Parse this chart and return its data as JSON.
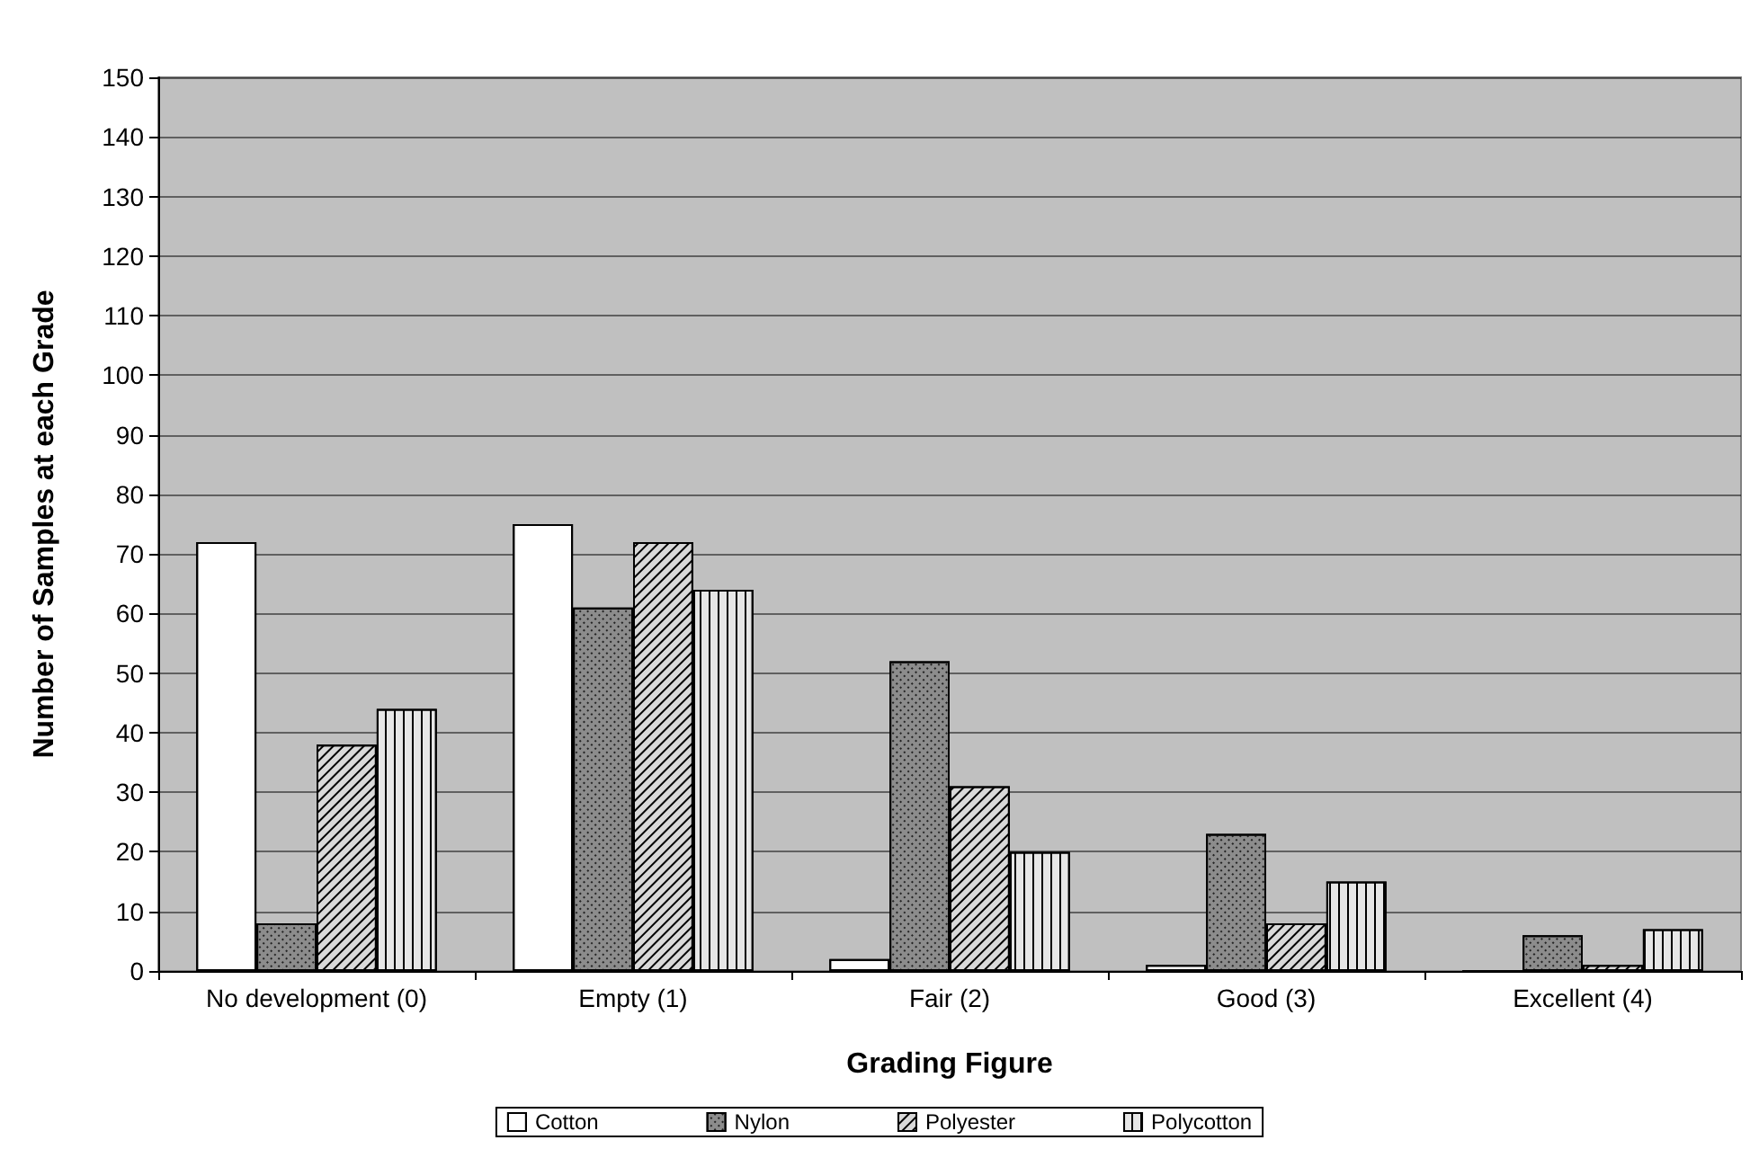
{
  "chart_data": {
    "type": "bar",
    "xlabel": "Grading Figure",
    "ylabel": "Number of Samples at each Grade",
    "categories": [
      "No development (0)",
      "Empty (1)",
      "Fair (2)",
      "Good (3)",
      "Excellent (4)"
    ],
    "series": [
      {
        "name": "Cotton",
        "color": "#ffffff",
        "values": [
          72,
          75,
          2,
          1,
          0
        ]
      },
      {
        "name": "Nylon",
        "color": "#8c8c8c",
        "values": [
          8,
          61,
          52,
          23,
          6
        ]
      },
      {
        "name": "Polyester",
        "color": "#d9d9d9",
        "values": [
          38,
          72,
          31,
          8,
          1
        ]
      },
      {
        "name": "Polycotton",
        "color": "#e6e6e6",
        "values": [
          44,
          64,
          20,
          15,
          7
        ]
      }
    ],
    "ylim": [
      0,
      150
    ],
    "yticks": [
      0,
      10,
      20,
      30,
      40,
      50,
      60,
      70,
      80,
      90,
      100,
      110,
      120,
      130,
      140,
      150
    ],
    "grid": "y",
    "legend": "bottom"
  }
}
